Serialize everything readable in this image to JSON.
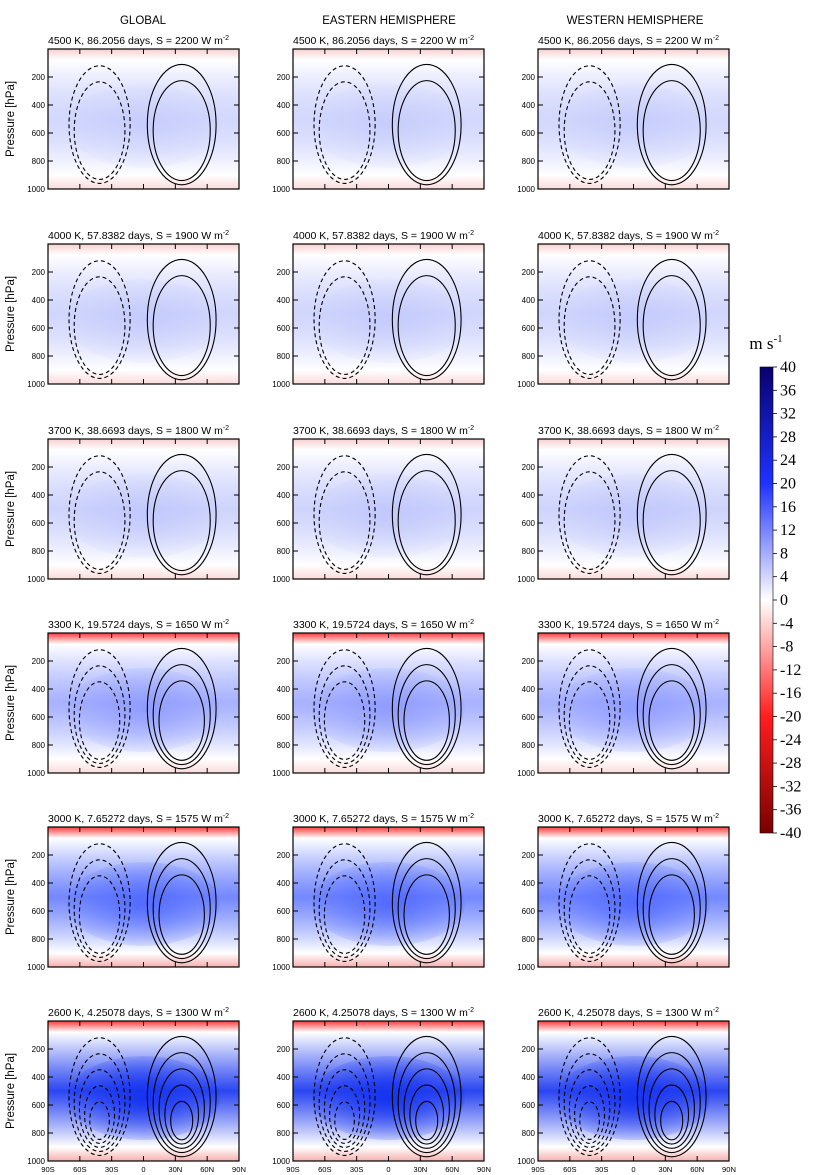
{
  "column_titles": [
    "GLOBAL",
    "EASTERN HEMISPHERE",
    "WESTERN HEMISPHERE"
  ],
  "colorbar": {
    "unit_base": "m s",
    "unit_exp": "-1",
    "ticks": [
      "40",
      "36",
      "32",
      "28",
      "24",
      "20",
      "16",
      "12",
      "8",
      "4",
      "0",
      "-4",
      "-8",
      "-12",
      "-16",
      "-20",
      "-24",
      "-28",
      "-32",
      "-36",
      "-40"
    ],
    "min": -40,
    "max": 40,
    "colors": {
      "max": "#08006e",
      "mid_blue": "#1e32ff",
      "zero": "#ffffff",
      "mid_red": "#ff1e1e",
      "min": "#780000"
    }
  },
  "chart_data": {
    "type": "heatmap",
    "ylabel": "Pressure [hPa]",
    "yticks": [
      "200",
      "400",
      "600",
      "800",
      "1000"
    ],
    "ylim": [
      0,
      1000
    ],
    "yaxis_inverted": true,
    "xticks": [
      "90S",
      "60S",
      "30S",
      "0",
      "30N",
      "60N",
      "90N"
    ],
    "xlim": [
      -90,
      90
    ],
    "contours": "solid lines positive, dashed lines negative",
    "rows": [
      {
        "title_text": "4500 K, 86.2056 days, S = 2200 W m",
        "title_exp": "-2",
        "intensity": 0.12
      },
      {
        "title_text": "4000 K, 57.8382 days, S = 1900 W m",
        "title_exp": "-2",
        "intensity": 0.18
      },
      {
        "title_text": "3700 K, 38.6693 days, S = 1800 W m",
        "title_exp": "-2",
        "intensity": 0.26
      },
      {
        "title_text": "3300 K, 19.5724 days, S = 1650 W m",
        "title_exp": "-2",
        "intensity": 0.42
      },
      {
        "title_text": "3000 K, 7.65272 days, S = 1575 W m",
        "title_exp": "-2",
        "intensity": 0.55
      },
      {
        "title_text": "2600 K, 4.25078 days, S = 1300 W m",
        "title_exp": "-2",
        "intensity": 0.9
      }
    ]
  }
}
